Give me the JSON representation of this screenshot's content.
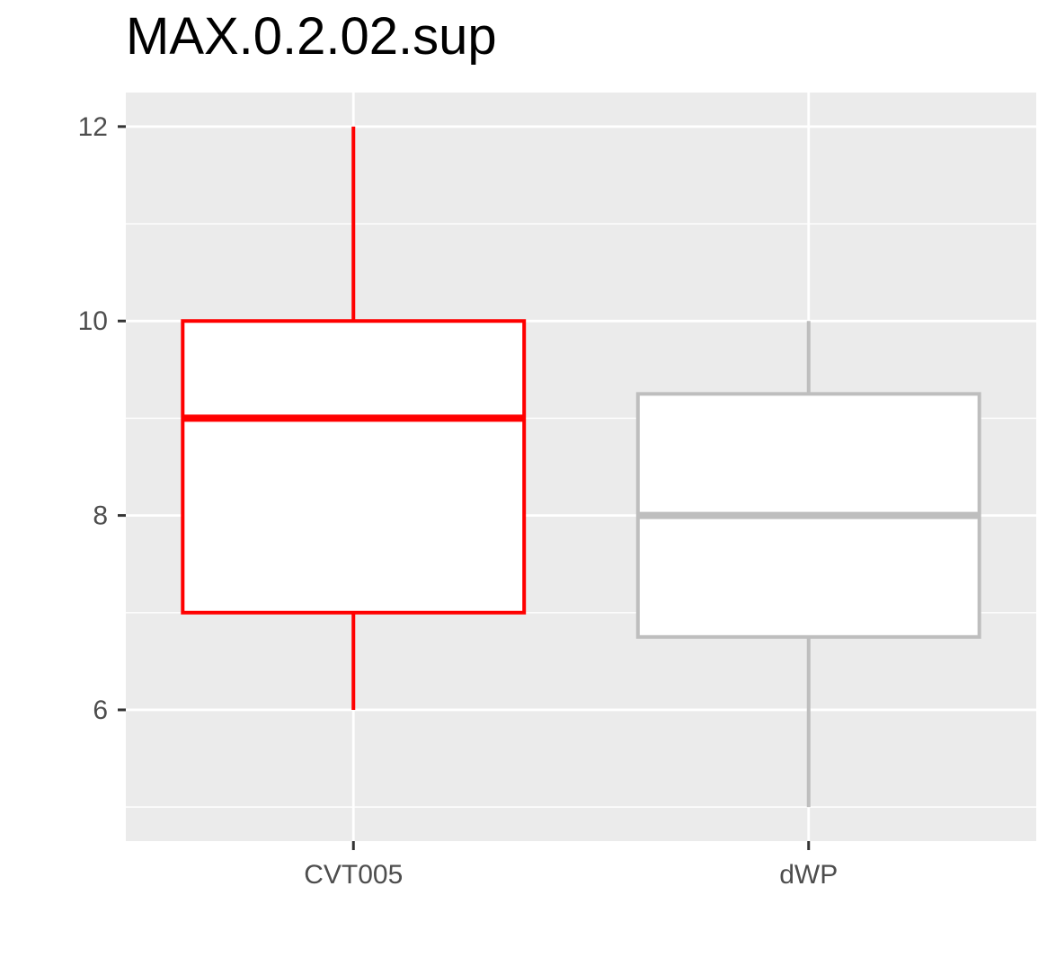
{
  "chart_data": {
    "type": "box",
    "title": "MAX.0.2.02.sup",
    "xlabel": "",
    "ylabel": "",
    "ylim": [
      4.65,
      12.35
    ],
    "y_ticks": [
      6,
      8,
      10,
      12
    ],
    "y_minor_ticks": [
      5,
      7,
      9,
      11
    ],
    "grid": true,
    "background": "#ebebeb",
    "categories": [
      "CVT005",
      "dWP"
    ],
    "boxes": [
      {
        "category": "CVT005",
        "color": "#ff0000",
        "lower_whisker": 6,
        "q1": 7,
        "median": 9,
        "q3": 10,
        "upper_whisker": 12
      },
      {
        "category": "dWP",
        "color": "#bebebe",
        "lower_whisker": 5,
        "q1": 6.75,
        "median": 8,
        "q3": 9.25,
        "upper_whisker": 10
      }
    ]
  }
}
